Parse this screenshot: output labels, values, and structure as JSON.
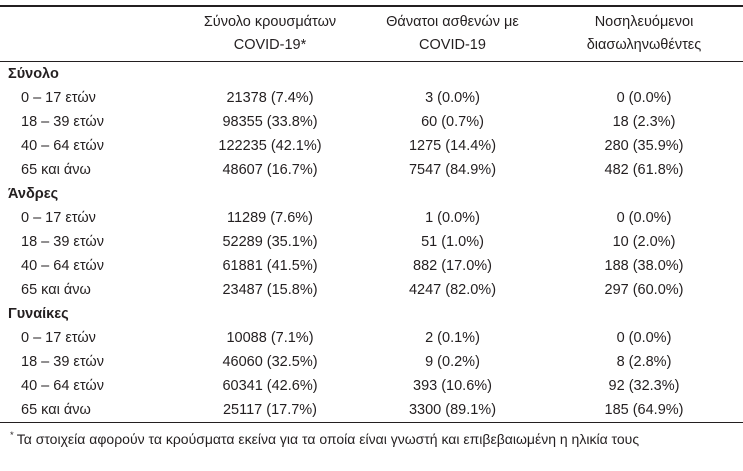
{
  "colors": {
    "text": "#231f20",
    "background": "#ffffff",
    "rule": "#231f20"
  },
  "table": {
    "columns": [
      {
        "line1": "Σύνολο κρουσμάτων",
        "line2": "COVID-19*"
      },
      {
        "line1": "Θάνατοι ασθενών με",
        "line2": "COVID-19"
      },
      {
        "line1": "Νοσηλευόμενοι",
        "line2": "διασωληνωθέντες"
      }
    ],
    "sections": [
      {
        "label": "Σύνολο",
        "rows": [
          {
            "age": "0 – 17 ετών",
            "cases": "21378 (7.4%)",
            "deaths": "3 (0.0%)",
            "intubated": "0 (0.0%)"
          },
          {
            "age": "18 – 39 ετών",
            "cases": "98355 (33.8%)",
            "deaths": "60 (0.7%)",
            "intubated": "18 (2.3%)"
          },
          {
            "age": "40 – 64 ετών",
            "cases": "122235 (42.1%)",
            "deaths": "1275 (14.4%)",
            "intubated": "280 (35.9%)"
          },
          {
            "age": "65 και άνω",
            "cases": "48607 (16.7%)",
            "deaths": "7547 (84.9%)",
            "intubated": "482 (61.8%)"
          }
        ]
      },
      {
        "label": "Άνδρες",
        "rows": [
          {
            "age": "0 – 17 ετών",
            "cases": "11289 (7.6%)",
            "deaths": "1 (0.0%)",
            "intubated": "0 (0.0%)"
          },
          {
            "age": "18 – 39 ετών",
            "cases": "52289 (35.1%)",
            "deaths": "51 (1.0%)",
            "intubated": "10 (2.0%)"
          },
          {
            "age": "40 – 64 ετών",
            "cases": "61881 (41.5%)",
            "deaths": "882 (17.0%)",
            "intubated": "188 (38.0%)"
          },
          {
            "age": "65 και άνω",
            "cases": "23487 (15.8%)",
            "deaths": "4247 (82.0%)",
            "intubated": "297 (60.0%)"
          }
        ]
      },
      {
        "label": "Γυναίκες",
        "rows": [
          {
            "age": "0 – 17 ετών",
            "cases": "10088 (7.1%)",
            "deaths": "2 (0.1%)",
            "intubated": "0 (0.0%)"
          },
          {
            "age": "18 – 39 ετών",
            "cases": "46060 (32.5%)",
            "deaths": "9 (0.2%)",
            "intubated": "8 (2.8%)"
          },
          {
            "age": "40 – 64 ετών",
            "cases": "60341 (42.6%)",
            "deaths": "393 (10.6%)",
            "intubated": "92 (32.3%)"
          },
          {
            "age": "65 και άνω",
            "cases": "25117 (17.7%)",
            "deaths": "3300 (89.1%)",
            "intubated": "185 (64.9%)"
          }
        ]
      }
    ],
    "footnote": {
      "marker": "*",
      "text": "Τα στοιχεία αφορούν τα κρούσματα εκείνα για τα οποία είναι γνωστή και επιβεβαιωμένη η ηλικία τους"
    }
  }
}
